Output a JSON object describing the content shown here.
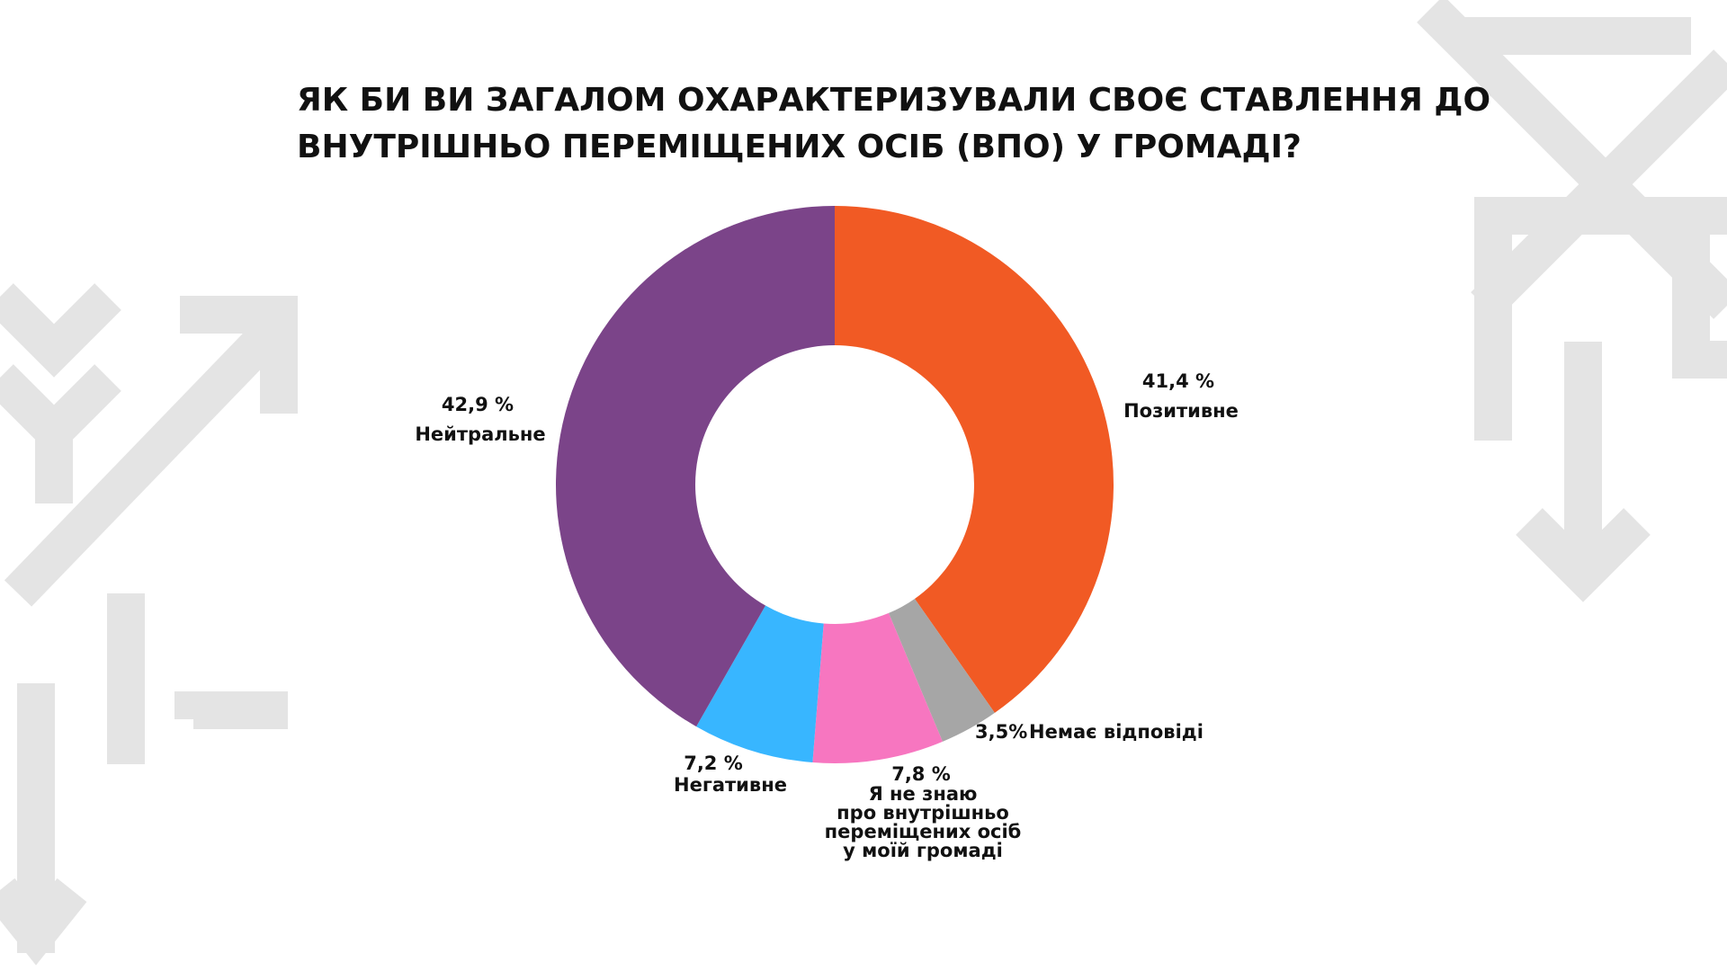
{
  "chart_data": {
    "type": "donut",
    "title": "ЯК БИ ВИ ЗАГАЛОМ ОХАРАКТЕРИЗУВАЛИ СВОЄ СТАВЛЕННЯ ДО\nВНУТРІШНЬО ПЕРЕМІЩЕНИХ ОСІБ (ВПО) У ГРОМАДІ?",
    "categories": [
      "Позитивне",
      "Немає відповіді",
      "Я не знаю\nпро внутрішньо\nпереміщених осіб\nу моїй громаді",
      "Негативне",
      "Нейтральне"
    ],
    "values": [
      41.4,
      3.5,
      7.8,
      7.2,
      42.9
    ],
    "value_labels": [
      "41,4 %",
      "3,5%",
      "7,8 %",
      "7,2 %",
      "42,9 %"
    ],
    "colors": [
      "#f15a24",
      "#a6a6a6",
      "#f776c0",
      "#38b6ff",
      "#7b4489"
    ]
  }
}
